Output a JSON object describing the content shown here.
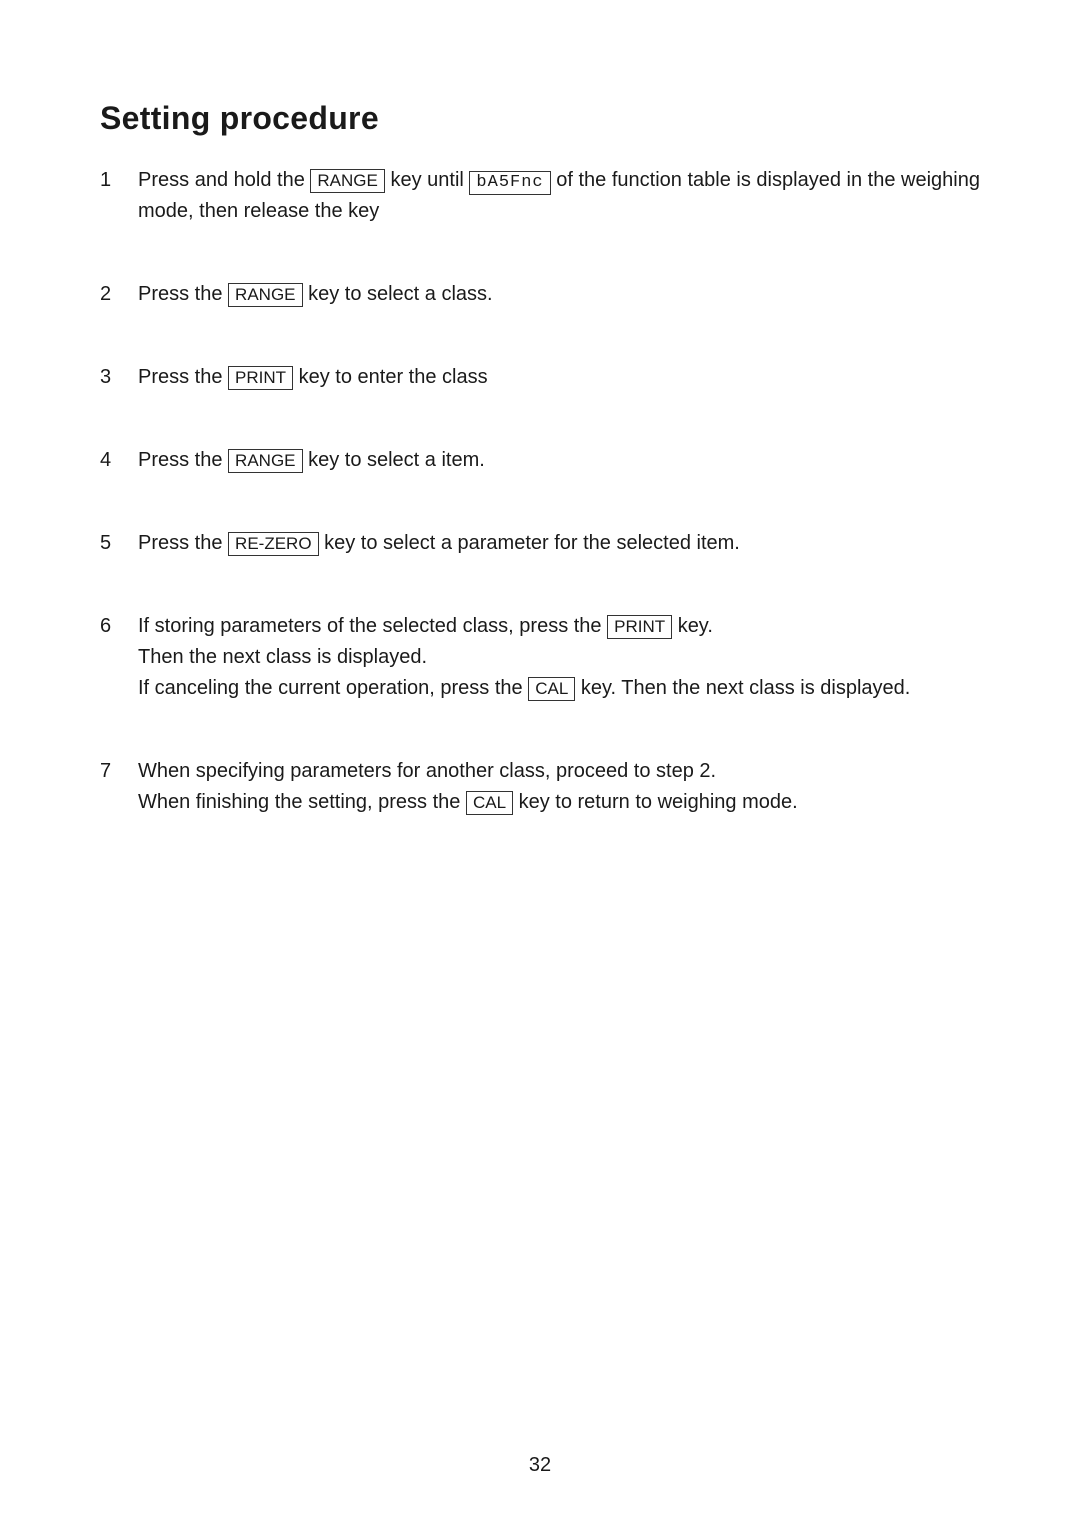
{
  "heading": "Setting procedure",
  "keys": {
    "range": "RANGE",
    "print": "PRINT",
    "rezero": "RE-ZERO",
    "cal": "CAL"
  },
  "segment": {
    "basfnc": "bA5Fnc"
  },
  "steps": {
    "s1": {
      "num": "1",
      "t1": "Press and hold the ",
      "t2": " key until ",
      "t3": " of the function table is displayed in the weighing mode, then release the key"
    },
    "s2": {
      "num": "2",
      "t1": "Press the ",
      "t2": " key to select a class."
    },
    "s3": {
      "num": "3",
      "t1": "Press the ",
      "t2": " key to enter the class"
    },
    "s4": {
      "num": "4",
      "t1": "Press the ",
      "t2": " key to select a item."
    },
    "s5": {
      "num": "5",
      "t1": "Press the ",
      "t2": " key to select a parameter for the selected item."
    },
    "s6": {
      "num": "6",
      "line1_t1": "If storing parameters of the selected class, press the ",
      "line1_t2": " key.",
      "line2": "Then the next class is displayed.",
      "line3_t1": "If canceling the current operation, press the ",
      "line3_t2": " key. Then the next class is displayed."
    },
    "s7": {
      "num": "7",
      "line1": "When specifying parameters for another class, proceed to step 2.",
      "line2_t1": "When finishing the setting, press the ",
      "line2_t2": " key to return to weighing mode."
    }
  },
  "page_number": "32",
  "colors": {
    "text": "#1a1a1a",
    "background": "#ffffff",
    "border": "#333333"
  },
  "typography": {
    "heading_fontsize": 32,
    "body_fontsize": 20,
    "key_fontsize": 17
  }
}
